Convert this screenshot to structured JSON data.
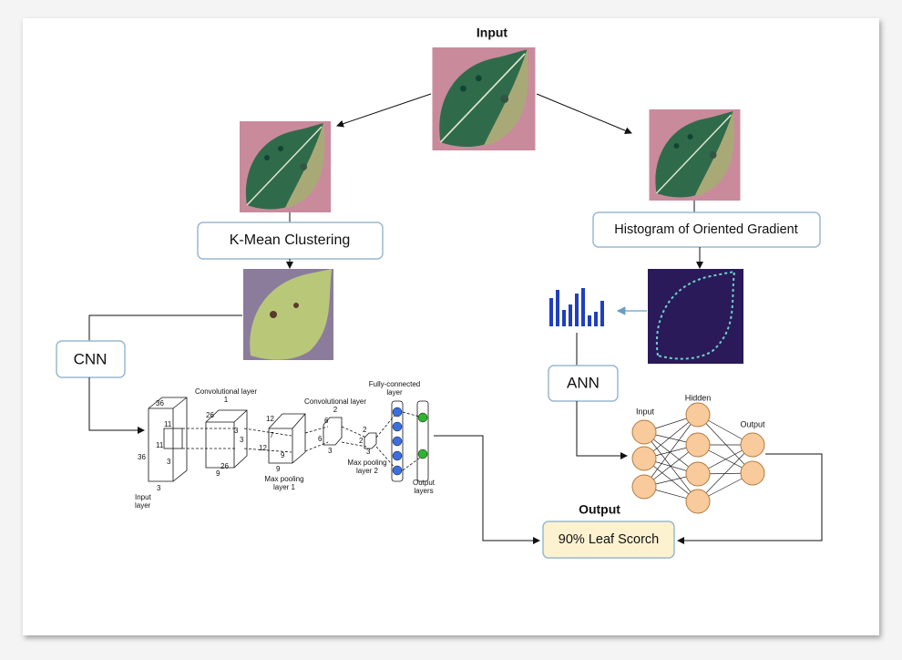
{
  "header": {
    "input": "Input",
    "output": "Output"
  },
  "boxes": {
    "kmean": "K-Mean  Clustering",
    "hog": "Histogram of Oriented Gradient",
    "cnn": "CNN",
    "ann": "ANN",
    "result": "90% Leaf Scorch"
  },
  "cnn": {
    "labels": [
      "36",
      "36",
      "3",
      "Input layer",
      "11",
      "11",
      "3",
      "Convolutional layer 1",
      "26",
      "26",
      "9",
      "3",
      "3",
      "12",
      "12",
      "7",
      "9",
      "9",
      "Max pooling layer 1",
      "Convolutional layer 2",
      "6",
      "6",
      "3",
      "2",
      "2",
      "3",
      "Max pooling layer 2",
      "Fully-connected layer",
      "Output layers"
    ]
  },
  "ann": {
    "input": "Input",
    "hidden": "Hidden",
    "output": "Output"
  }
}
